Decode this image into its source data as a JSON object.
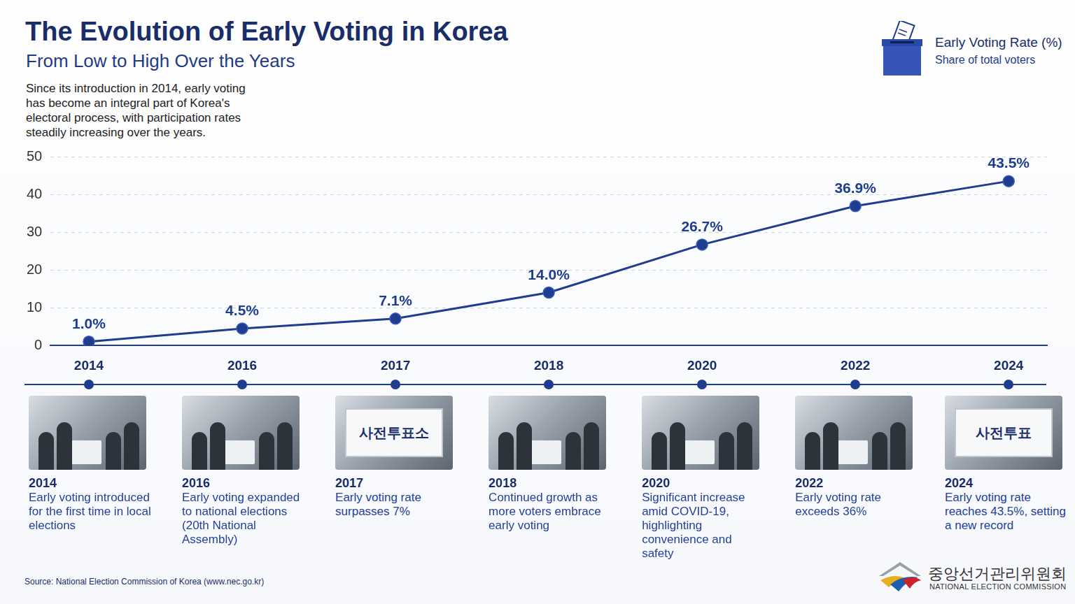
{
  "title": "The Evolution of Early Voting in Korea",
  "subtitle": "From Low to High Over the Years",
  "description": "Since its introduction in 2014, early voting has become an integral part of Korea's electoral process, with participation rates steadily increasing over the years.",
  "key": {
    "title": "Early Voting Rate (%)",
    "subtitle": "Share of total voters"
  },
  "chart_data": {
    "type": "line",
    "categories": [
      "2014",
      "2016",
      "2017",
      "2018",
      "2020",
      "2022",
      "2024"
    ],
    "values": [
      1.0,
      4.5,
      7.1,
      14.0,
      26.7,
      36.9,
      43.5
    ],
    "value_labels": [
      "1.0%",
      "4.5%",
      "7.1%",
      "14.0%",
      "26.7%",
      "36.9%",
      "43.5%"
    ],
    "color": "#1f3d8f",
    "ylim": [
      0,
      50
    ],
    "yticks": [
      0,
      10,
      20,
      30,
      40,
      50
    ],
    "grid": true,
    "data_labels": true,
    "marker": "circle",
    "line_style": "solid"
  },
  "timeline": [
    {
      "year": "2014",
      "text": "Early voting introduced for the first time in local elections"
    },
    {
      "year": "2016",
      "text": "Early voting expanded to national elections (20th National Assembly)"
    },
    {
      "year": "2017",
      "text": "Early voting rate surpasses 7%",
      "sign": "사전투표소"
    },
    {
      "year": "2018",
      "text": "Continued growth as more voters embrace early voting"
    },
    {
      "year": "2020",
      "text": "Significant increase amid COVID-19, highlighting convenience and safety"
    },
    {
      "year": "2022",
      "text": "Early voting rate exceeds 36%"
    },
    {
      "year": "2024",
      "text": "Early voting rate reaches 43.5%, setting a new record",
      "sign": "사전투표"
    }
  ],
  "source": "Source: National Election Commission of Korea (www.nec.go.kr)",
  "logo": {
    "name": "중앙선거관리위원회",
    "name_en": "NATIONAL ELECTION COMMISSION"
  }
}
